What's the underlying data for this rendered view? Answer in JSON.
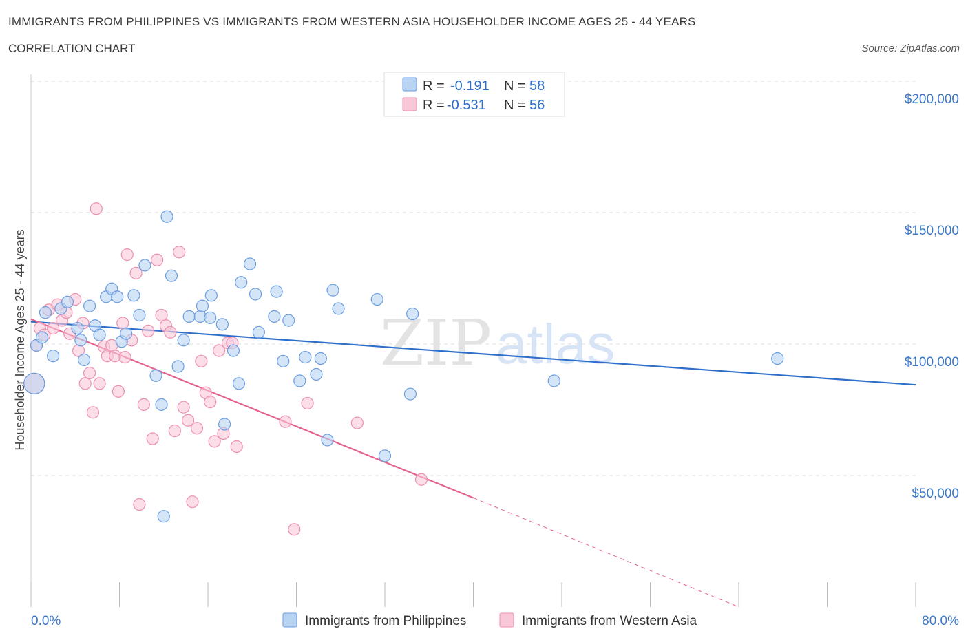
{
  "title": "IMMIGRANTS FROM PHILIPPINES VS IMMIGRANTS FROM WESTERN ASIA HOUSEHOLDER INCOME AGES 25 - 44 YEARS",
  "subtitle": "CORRELATION CHART",
  "source": "Source: ZipAtlas.com",
  "watermark": {
    "zip": "ZIP",
    "atlas": "atlas"
  },
  "legend": {
    "r_label": "R =",
    "n_label": "N =",
    "entries": [
      {
        "r": "-0.191",
        "n": "58"
      },
      {
        "r": "-0.531",
        "n": "56"
      }
    ]
  },
  "colors": {
    "blue_fill": "#b9d3f3",
    "blue_stroke": "#6b9ee0",
    "blue_line": "#2f6fcb",
    "pink_fill": "#f9c8d8",
    "pink_stroke": "#ec8fae",
    "pink_line": "#e4628f",
    "grid": "#dedede",
    "tick_label": "#3b78c9"
  },
  "chart_data": {
    "type": "scatter",
    "title": "IMMIGRANTS FROM PHILIPPINES VS IMMIGRANTS FROM WESTERN ASIA HOUSEHOLDER INCOME AGES 25 - 44 YEARS",
    "xlabel": "",
    "ylabel": "Householder Income Ages 25 - 44 years",
    "xlim": [
      0,
      80
    ],
    "ylim": [
      0,
      200000
    ],
    "x_tick_labels": [
      "0.0%",
      "80.0%"
    ],
    "y_ticks": [
      50000,
      100000,
      150000,
      200000
    ],
    "y_tick_labels": [
      "$50,000",
      "$100,000",
      "$150,000",
      "$200,000"
    ],
    "grid": true,
    "legend_position": "top-center",
    "series": [
      {
        "name": "Immigrants from Philippines",
        "color": "#6b9ee0",
        "trend": {
          "x": [
            0,
            80
          ],
          "y": [
            108500,
            84500
          ]
        },
        "points": [
          [
            0.3,
            85000
          ],
          [
            0.5,
            99500
          ],
          [
            1.0,
            102500
          ],
          [
            1.3,
            112000
          ],
          [
            2.0,
            95500
          ],
          [
            2.7,
            113500
          ],
          [
            3.3,
            116000
          ],
          [
            4.2,
            106000
          ],
          [
            4.5,
            101500
          ],
          [
            4.8,
            94000
          ],
          [
            5.3,
            114500
          ],
          [
            5.8,
            107000
          ],
          [
            6.2,
            103500
          ],
          [
            6.8,
            118000
          ],
          [
            7.3,
            121000
          ],
          [
            7.8,
            118000
          ],
          [
            8.2,
            101000
          ],
          [
            8.6,
            104000
          ],
          [
            9.3,
            118500
          ],
          [
            9.8,
            111000
          ],
          [
            10.3,
            130000
          ],
          [
            11.3,
            88000
          ],
          [
            11.8,
            77000
          ],
          [
            12.3,
            148500
          ],
          [
            12.7,
            126000
          ],
          [
            13.3,
            91500
          ],
          [
            13.8,
            101500
          ],
          [
            14.3,
            110500
          ],
          [
            15.3,
            110500
          ],
          [
            15.5,
            114500
          ],
          [
            16.3,
            118500
          ],
          [
            16.2,
            110000
          ],
          [
            17.3,
            107500
          ],
          [
            17.5,
            69500
          ],
          [
            18.3,
            97500
          ],
          [
            18.8,
            85000
          ],
          [
            19.0,
            123500
          ],
          [
            19.8,
            130500
          ],
          [
            20.3,
            119000
          ],
          [
            20.6,
            104500
          ],
          [
            22.0,
            110500
          ],
          [
            22.2,
            120000
          ],
          [
            22.8,
            93500
          ],
          [
            23.3,
            109000
          ],
          [
            24.3,
            86000
          ],
          [
            24.8,
            95000
          ],
          [
            25.8,
            88500
          ],
          [
            26.2,
            94500
          ],
          [
            26.8,
            63500
          ],
          [
            27.3,
            120500
          ],
          [
            27.8,
            113500
          ],
          [
            31.3,
            117000
          ],
          [
            32.0,
            57500
          ],
          [
            34.3,
            81000
          ],
          [
            34.5,
            111500
          ],
          [
            47.3,
            86000
          ],
          [
            67.5,
            94500
          ],
          [
            12.0,
            34500
          ]
        ]
      },
      {
        "name": "Immigrants from Western Asia",
        "color": "#ec8fae",
        "trend": {
          "x": [
            0,
            40
          ],
          "y": [
            109500,
            41500
          ]
        },
        "trend_dashed": {
          "x": [
            40,
            64
          ],
          "y": [
            41500,
            0
          ]
        },
        "points": [
          [
            0.3,
            85000
          ],
          [
            0.5,
            99500
          ],
          [
            0.8,
            106000
          ],
          [
            1.2,
            103500
          ],
          [
            1.6,
            113000
          ],
          [
            2.0,
            106000
          ],
          [
            2.4,
            115000
          ],
          [
            2.8,
            109000
          ],
          [
            3.2,
            112000
          ],
          [
            3.5,
            104000
          ],
          [
            4.0,
            117000
          ],
          [
            4.3,
            97500
          ],
          [
            4.7,
            108000
          ],
          [
            4.9,
            85000
          ],
          [
            5.3,
            89000
          ],
          [
            5.6,
            74000
          ],
          [
            5.9,
            151500
          ],
          [
            6.2,
            85000
          ],
          [
            6.6,
            99000
          ],
          [
            6.9,
            95500
          ],
          [
            7.3,
            99500
          ],
          [
            7.6,
            95500
          ],
          [
            7.9,
            82000
          ],
          [
            8.3,
            108000
          ],
          [
            8.7,
            134000
          ],
          [
            9.1,
            101500
          ],
          [
            9.5,
            127000
          ],
          [
            9.8,
            39000
          ],
          [
            10.2,
            77000
          ],
          [
            10.6,
            105000
          ],
          [
            11.0,
            64000
          ],
          [
            11.4,
            132000
          ],
          [
            11.8,
            111000
          ],
          [
            12.2,
            107000
          ],
          [
            12.6,
            104500
          ],
          [
            13.0,
            67000
          ],
          [
            13.4,
            135000
          ],
          [
            13.8,
            76000
          ],
          [
            14.2,
            71000
          ],
          [
            14.6,
            40000
          ],
          [
            15.0,
            68000
          ],
          [
            15.4,
            93500
          ],
          [
            15.8,
            81500
          ],
          [
            16.2,
            78000
          ],
          [
            16.6,
            63000
          ],
          [
            17.0,
            97500
          ],
          [
            17.4,
            66000
          ],
          [
            17.8,
            100500
          ],
          [
            18.2,
            100500
          ],
          [
            18.6,
            61000
          ],
          [
            23.0,
            70500
          ],
          [
            23.8,
            29500
          ],
          [
            25.0,
            77500
          ],
          [
            29.5,
            70000
          ],
          [
            35.3,
            48500
          ],
          [
            8.5,
            95000
          ]
        ]
      }
    ]
  },
  "bottom_legend": [
    "Immigrants from Philippines",
    "Immigrants from Western Asia"
  ]
}
